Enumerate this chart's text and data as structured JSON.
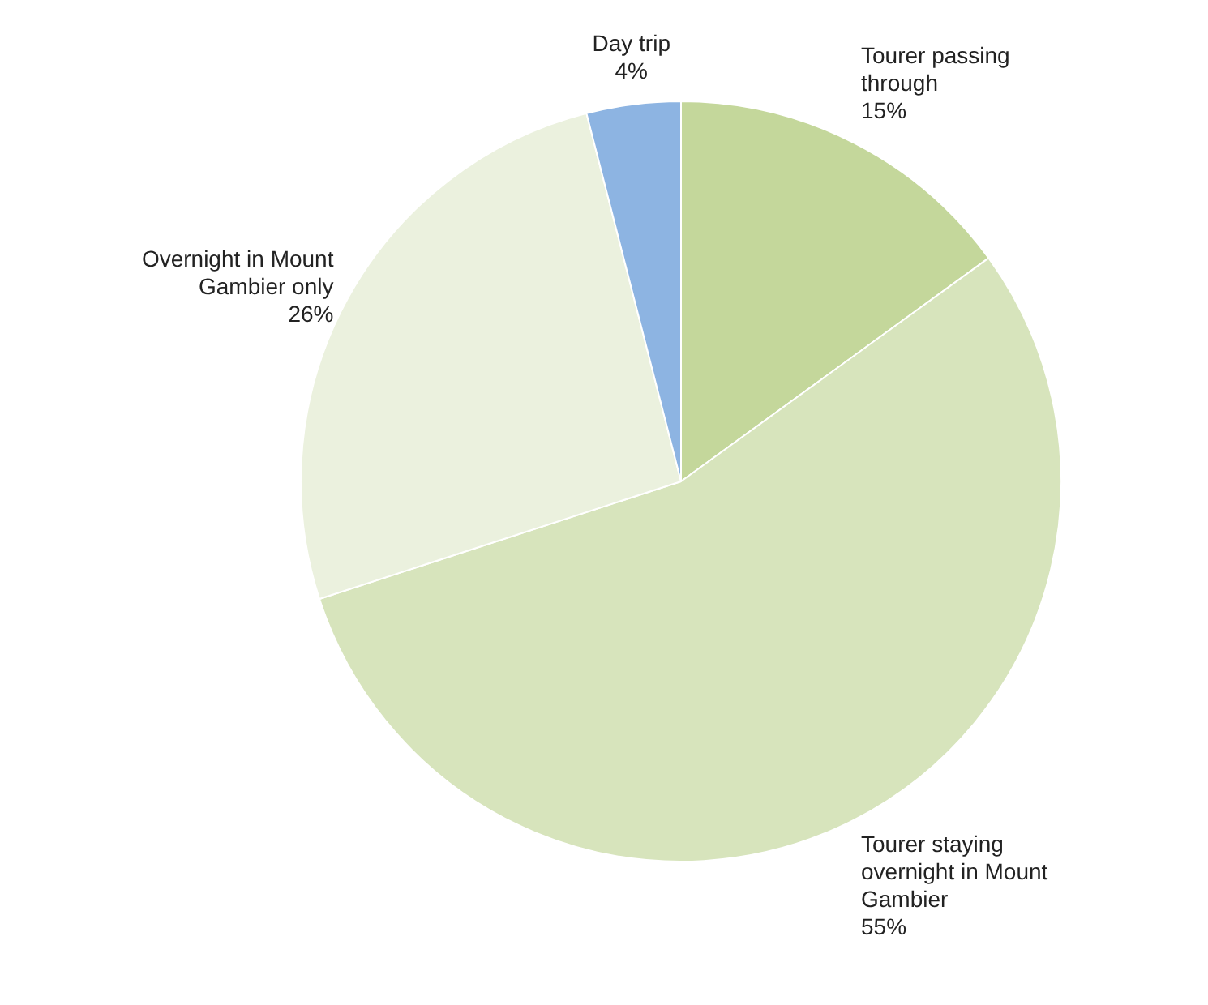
{
  "chart_data": {
    "type": "pie",
    "categories": [
      "Tourer passing through",
      "Tourer staying overnight in Mount Gambier",
      "Overnight in Mount Gambier only",
      "Day trip"
    ],
    "values": [
      15,
      55,
      26,
      4
    ],
    "value_labels": [
      "15%",
      "55%",
      "26%",
      "4%"
    ],
    "colors": [
      "#c4d79b",
      "#d7e4bc",
      "#ebf1de",
      "#8db4e2"
    ],
    "legend": false
  }
}
